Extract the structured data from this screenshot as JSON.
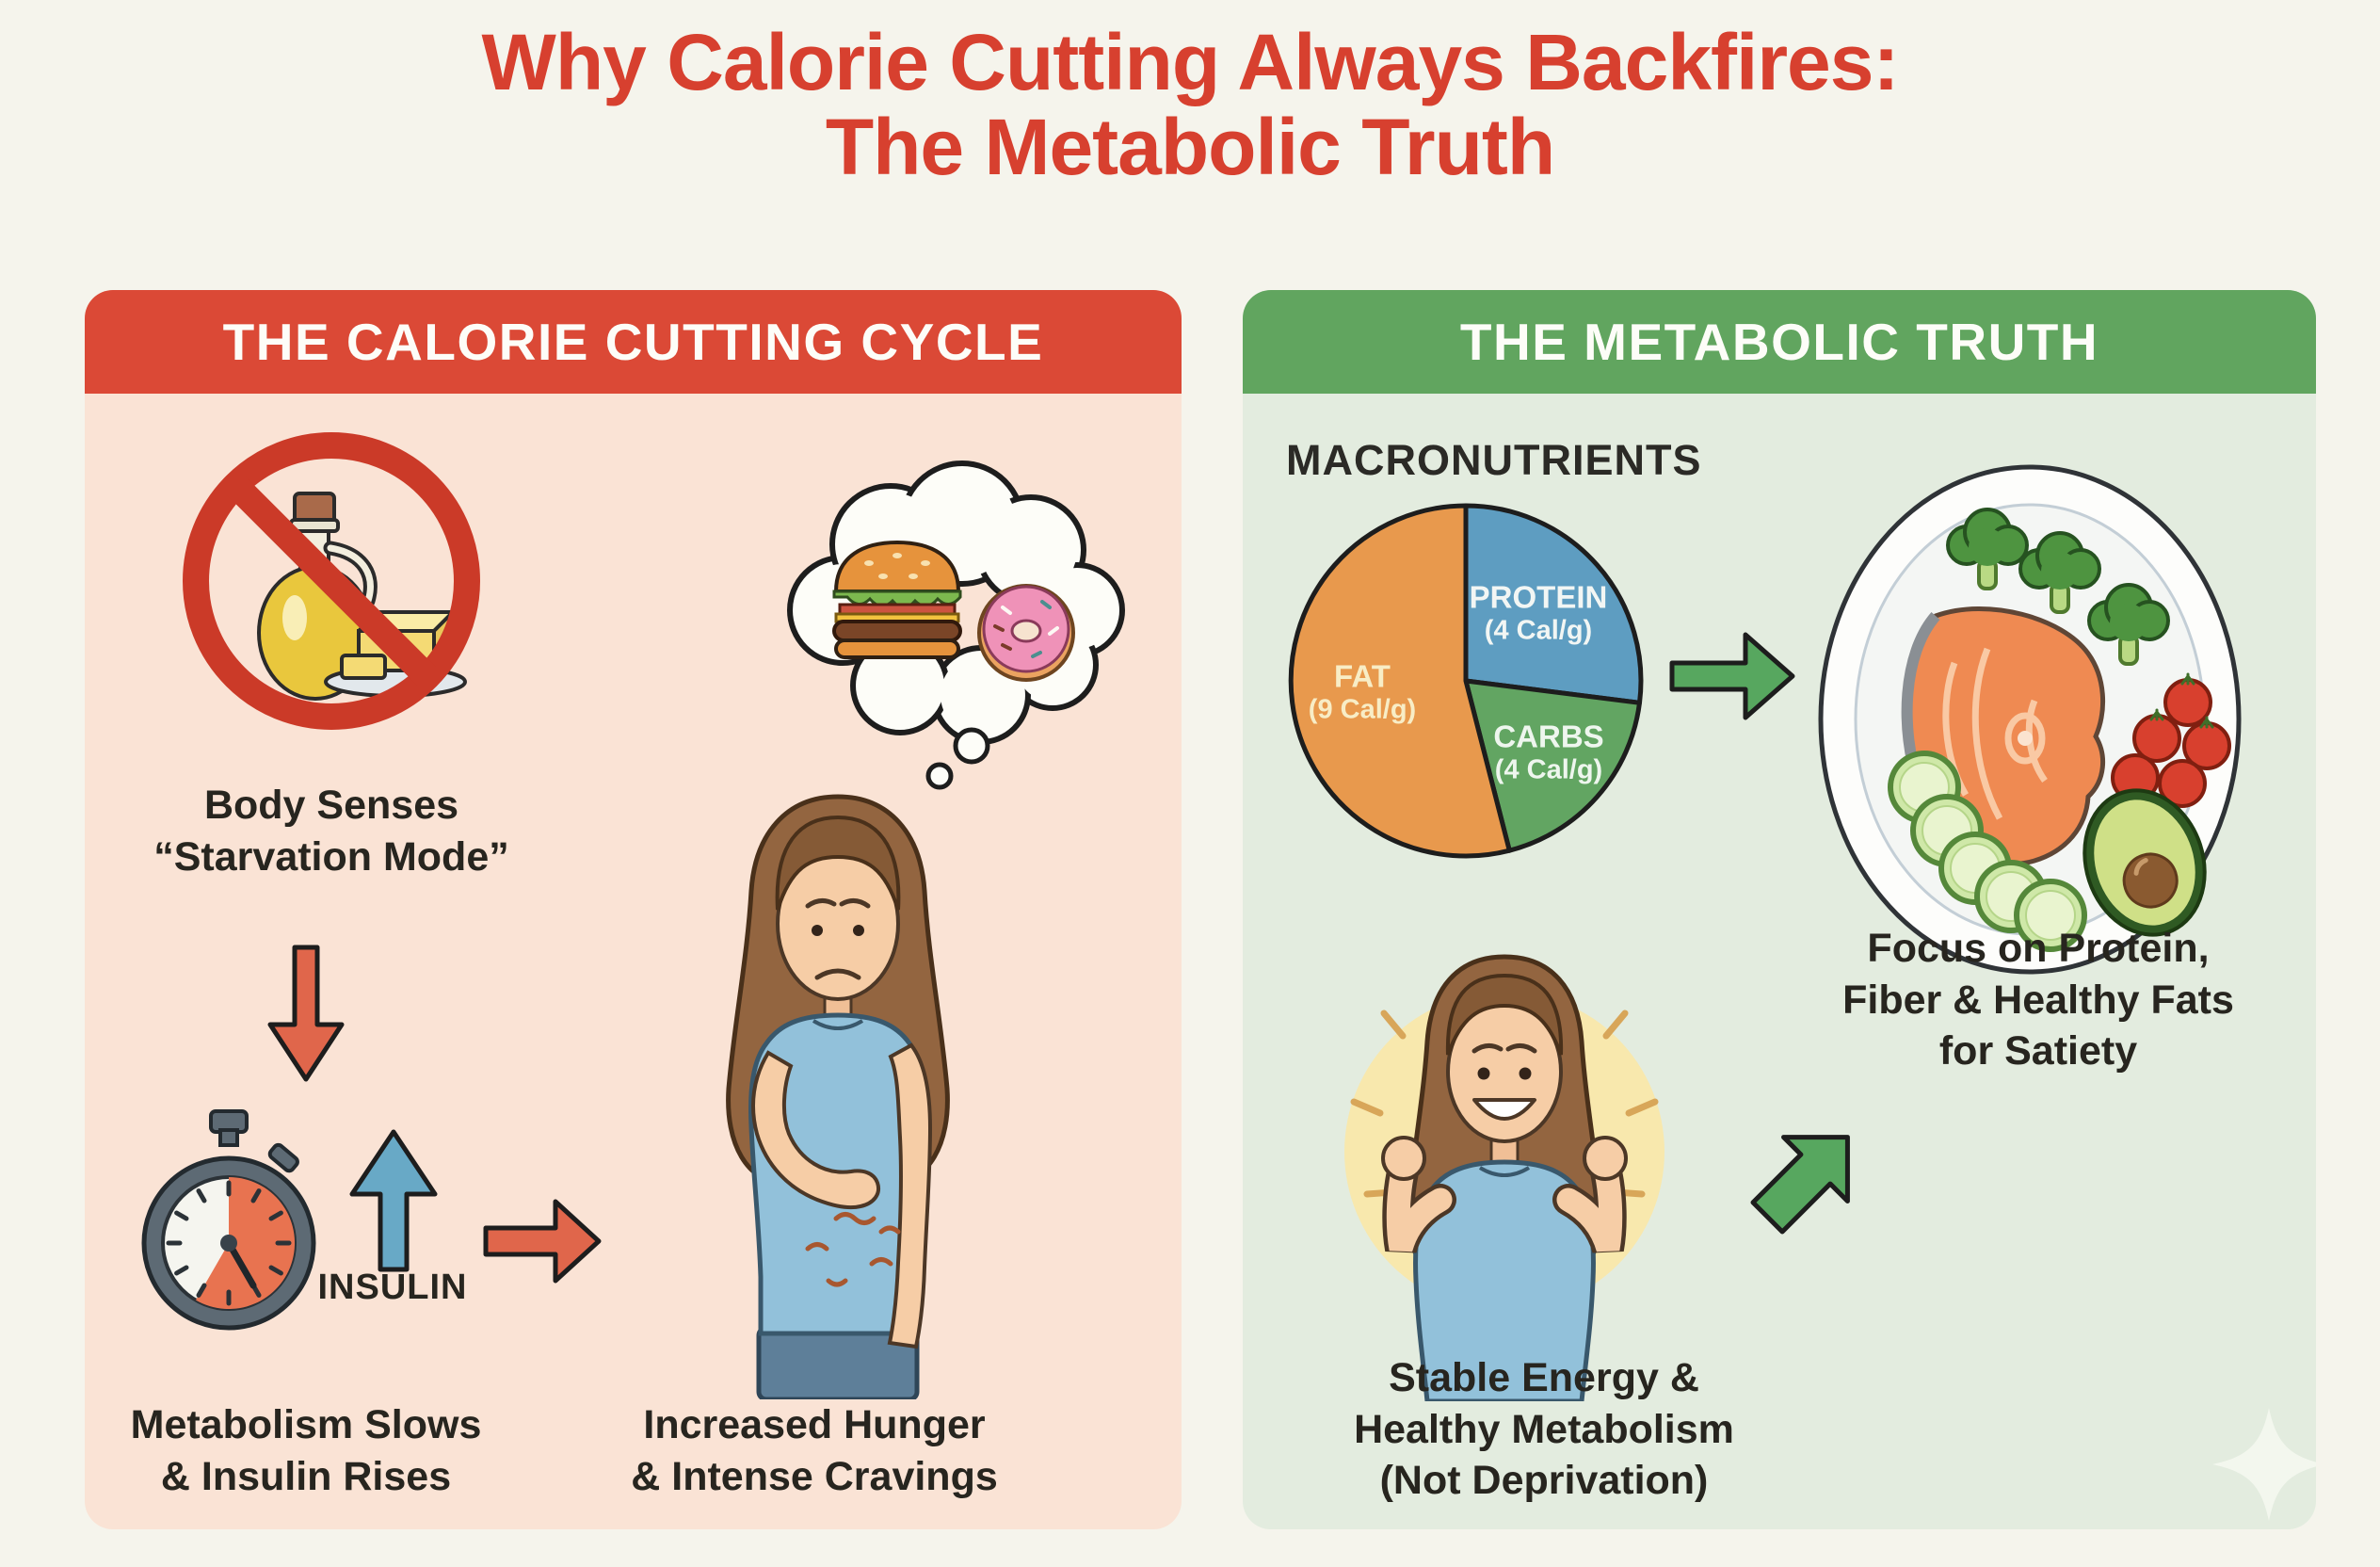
{
  "title": {
    "line1": "Why Calorie Cutting Always Backfires:",
    "line2": "The Metabolic Truth",
    "color": "#d7402f"
  },
  "left_panel": {
    "header": "THE CALORIE CUTTING CYCLE",
    "header_color": "#db4936",
    "body_color": "#fae3d5",
    "captions": {
      "starvation": "Body Senses\n“Starvation Mode”",
      "insulin_label": "INSULIN",
      "metabolism": "Metabolism Slows\n& Insulin Rises",
      "hunger": "Increased Hunger\n& Intense Cravings"
    },
    "icons": [
      "no-fats-prohibition",
      "oil-bottle",
      "butter-dish",
      "red-down-arrow",
      "stopwatch",
      "blue-up-arrow",
      "red-right-arrow",
      "thought-bubble",
      "burger",
      "donut",
      "sad-woman-holding-stomach"
    ]
  },
  "right_panel": {
    "header": "THE METABOLIC TRUTH",
    "header_color": "#61a55f",
    "body_color": "#e3ecdf",
    "macronutrients_title": "MACRONUTRIENTS",
    "captions": {
      "satiety": "Focus on Protein,\nFiber & Healthy Fats\nfor Satiety",
      "stable": "Stable Energy &\nHealthy Metabolism\n(Not Deprivation)"
    },
    "icons": [
      "macronutrients-pie-chart",
      "green-right-arrow",
      "healthy-meal-plate",
      "salmon",
      "broccoli",
      "tomatoes",
      "cucumber",
      "avocado",
      "happy-woman-energized",
      "green-up-right-arrow",
      "sparkle"
    ]
  },
  "chart_data": {
    "type": "pie",
    "title": "MACRONUTRIENTS",
    "start_angle_deg": 0,
    "direction": "clockwise",
    "slices": [
      {
        "label": "PROTEIN",
        "cal_per_g": "(4 Cal/g)",
        "percent": 27,
        "color": "#5e9dc1"
      },
      {
        "label": "CARBS",
        "cal_per_g": "(4 Cal/g)",
        "percent": 19,
        "color": "#62a562"
      },
      {
        "label": "FAT",
        "cal_per_g": "(9 Cal/g)",
        "percent": 54,
        "color": "#e8994d"
      }
    ],
    "legend_position": "labels-inside-slices"
  },
  "palette": {
    "background": "#f5f4ec",
    "dark_text": "#27251f",
    "arrow_red": "#e0664b",
    "arrow_blue": "#68a9c6",
    "arrow_green": "#57a75f",
    "outline": "#1d1d1d"
  }
}
